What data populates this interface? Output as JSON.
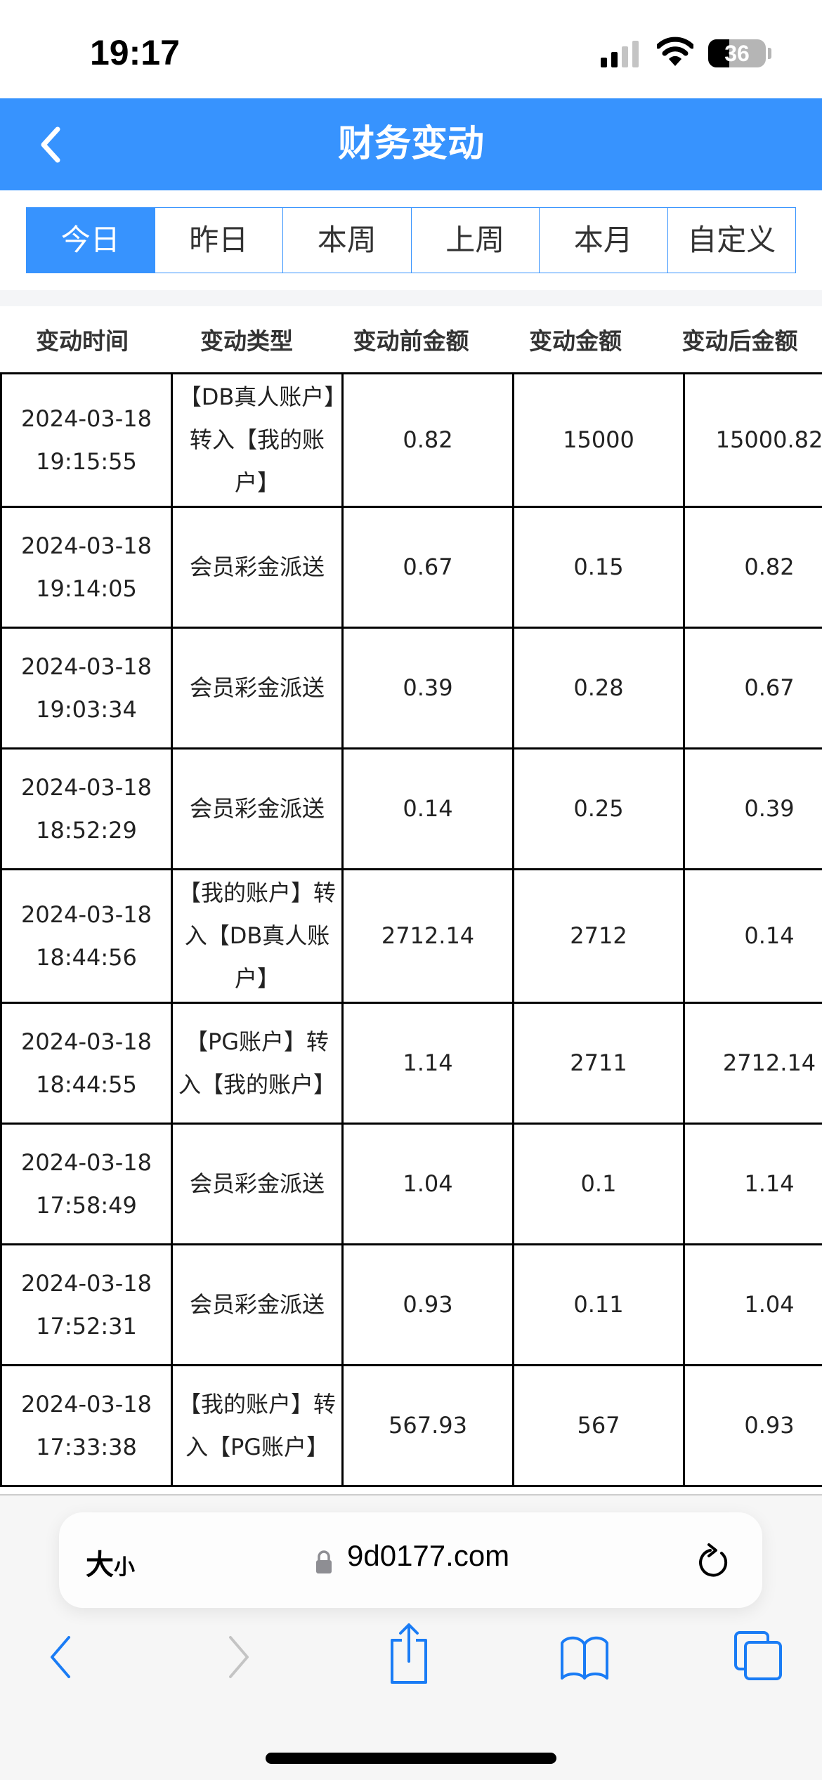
{
  "status_bar": {
    "time": "19:17",
    "battery": "36",
    "battery_level_percent": 36
  },
  "header": {
    "title": "财务变动",
    "back_icon": "chevron-left-icon",
    "background": "#3793fe"
  },
  "tabs": [
    {
      "label": "今日",
      "active": true
    },
    {
      "label": "昨日",
      "active": false
    },
    {
      "label": "本周",
      "active": false
    },
    {
      "label": "上周",
      "active": false
    },
    {
      "label": "本月",
      "active": false
    },
    {
      "label": "自定义",
      "active": false
    }
  ],
  "table": {
    "columns": [
      "变动时间",
      "变动类型",
      "变动前金额",
      "变动金额",
      "变动后金额"
    ],
    "rows": [
      {
        "date": "2024-03-18",
        "time": "19:15:55",
        "type": "【DB真人账户】转入【我的账户】",
        "before": "0.82",
        "amount": "15000",
        "after": "15000.82"
      },
      {
        "date": "2024-03-18",
        "time": "19:14:05",
        "type": "会员彩金派送",
        "before": "0.67",
        "amount": "0.15",
        "after": "0.82"
      },
      {
        "date": "2024-03-18",
        "time": "19:03:34",
        "type": "会员彩金派送",
        "before": "0.39",
        "amount": "0.28",
        "after": "0.67"
      },
      {
        "date": "2024-03-18",
        "time": "18:52:29",
        "type": "会员彩金派送",
        "before": "0.14",
        "amount": "0.25",
        "after": "0.39"
      },
      {
        "date": "2024-03-18",
        "time": "18:44:56",
        "type": "【我的账户】转入【DB真人账户】",
        "before": "2712.14",
        "amount": "2712",
        "after": "0.14"
      },
      {
        "date": "2024-03-18",
        "time": "18:44:55",
        "type": "【PG账户】转入【我的账户】",
        "before": "1.14",
        "amount": "2711",
        "after": "2712.14"
      },
      {
        "date": "2024-03-18",
        "time": "17:58:49",
        "type": "会员彩金派送",
        "before": "1.04",
        "amount": "0.1",
        "after": "1.14"
      },
      {
        "date": "2024-03-18",
        "time": "17:52:31",
        "type": "会员彩金派送",
        "before": "0.93",
        "amount": "0.11",
        "after": "1.04"
      },
      {
        "date": "2024-03-18",
        "time": "17:33:38",
        "type": "【我的账户】转入【PG账户】",
        "before": "567.93",
        "amount": "567",
        "after": "0.93"
      }
    ]
  },
  "browser": {
    "text_size_label": "大",
    "text_size_label_small": "小",
    "url": "9d0177.com",
    "icons": [
      "lock-icon",
      "reload-icon",
      "back-icon",
      "forward-icon",
      "share-icon",
      "bookmarks-icon",
      "tabs-icon"
    ],
    "accent": "#1a7cf5"
  }
}
